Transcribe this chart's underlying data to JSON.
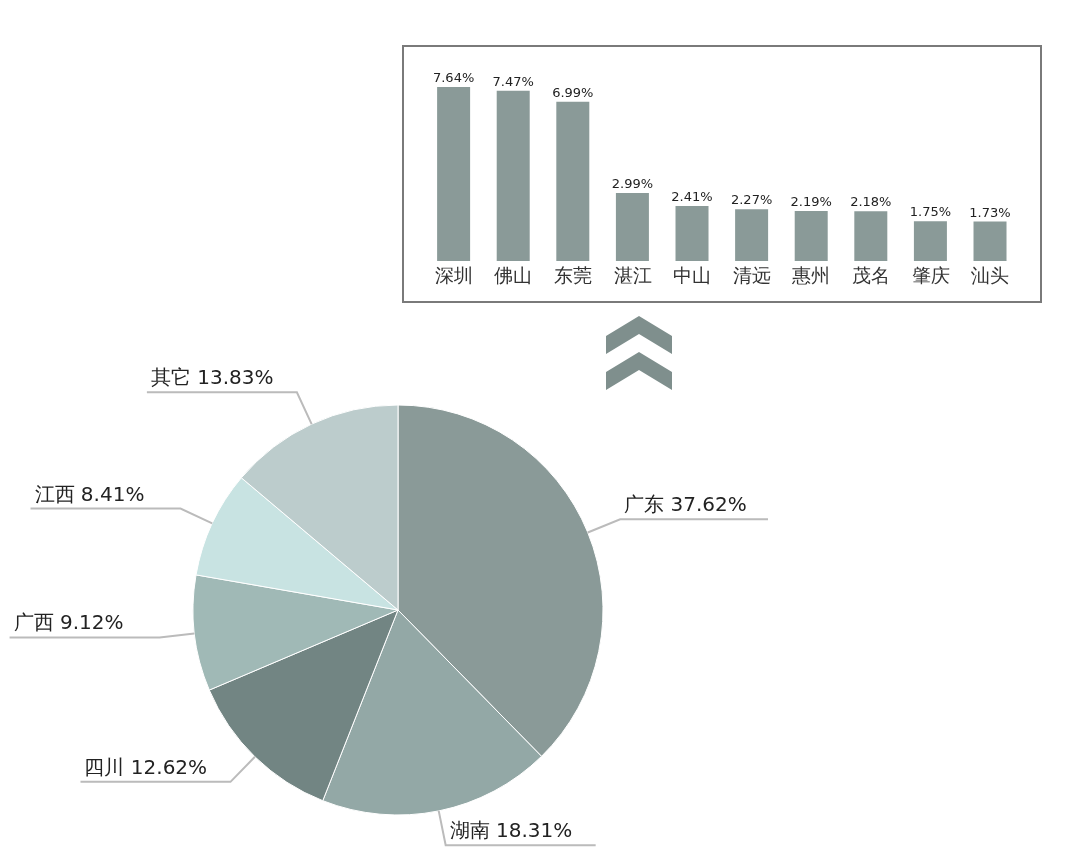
{
  "chart_data": [
    {
      "type": "bar",
      "categories": [
        "深圳",
        "佛山",
        "东莞",
        "湛江",
        "中山",
        "清远",
        "惠州",
        "茂名",
        "肇庆",
        "汕头"
      ],
      "values": [
        7.64,
        7.47,
        6.99,
        2.99,
        2.41,
        2.27,
        2.19,
        2.18,
        1.75,
        1.73
      ],
      "color": "#8a9a98",
      "value_labels": [
        "7.64%",
        "7.47%",
        "6.99%",
        "2.99%",
        "2.41%",
        "2.27%",
        "2.19%",
        "2.18%",
        "1.75%",
        "1.73%"
      ]
    },
    {
      "type": "pie",
      "categories": [
        "广东",
        "湖南",
        "四川",
        "广西",
        "江西",
        "其它"
      ],
      "values": [
        37.62,
        18.31,
        12.62,
        9.12,
        8.41,
        13.83
      ],
      "colors": [
        "#8a9a98",
        "#93a8a6",
        "#728583",
        "#a0b9b6",
        "#c8e3e2",
        "#bccccc"
      ],
      "value_labels": [
        "37.62%",
        "18.31%",
        "12.62%",
        "9.12%",
        "8.41%",
        "13.83%"
      ]
    }
  ]
}
